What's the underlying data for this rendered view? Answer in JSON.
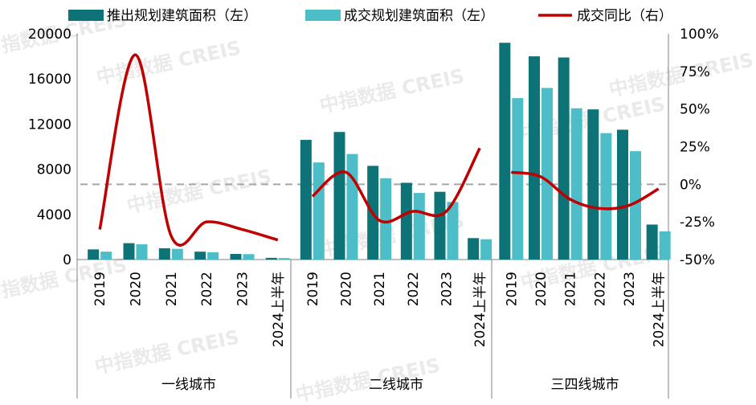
{
  "watermark": "中指数据 CREIS",
  "colors": {
    "launch": "#0d7377",
    "deal": "#4dbec8",
    "ratio": "#c00000",
    "zero_line": "#a6a6a6",
    "axis": "#808080"
  },
  "chart_data": {
    "type": "bar",
    "groups": [
      {
        "name": "一线城市",
        "categories": [
          "2019",
          "2020",
          "2021",
          "2022",
          "2023",
          "2024上半年"
        ]
      },
      {
        "name": "二线城市",
        "categories": [
          "2019",
          "2020",
          "2021",
          "2022",
          "2023",
          "2024上半年"
        ]
      },
      {
        "name": "三四线城市",
        "categories": [
          "2019",
          "2020",
          "2021",
          "2022",
          "2023",
          "2024上半年"
        ]
      }
    ],
    "series": [
      {
        "name": "推出规划建筑面积（左）",
        "kind": "bar",
        "axis": "left",
        "values": [
          900,
          1450,
          1000,
          700,
          500,
          150,
          10600,
          11300,
          8300,
          6800,
          6000,
          1900,
          19200,
          18000,
          17900,
          13300,
          11500,
          3100
        ]
      },
      {
        "name": "成交规划建筑面积（左）",
        "kind": "bar",
        "axis": "left",
        "values": [
          700,
          1350,
          950,
          650,
          480,
          130,
          8600,
          9350,
          7200,
          5900,
          5100,
          1800,
          14300,
          15200,
          13400,
          11200,
          9600,
          2500
        ]
      },
      {
        "name": "成交同比（右）",
        "kind": "line",
        "axis": "right",
        "values": [
          -30,
          86,
          -34,
          -25,
          -30,
          -37,
          -8,
          8,
          -24,
          -18,
          -18,
          24,
          8,
          5,
          -10,
          -16,
          -14,
          -3
        ]
      }
    ],
    "left_axis": {
      "ticks": [
        "0",
        "4000",
        "8000",
        "12000",
        "16000",
        "20000"
      ],
      "range": [
        0,
        20000
      ]
    },
    "right_axis": {
      "ticks": [
        "-50%",
        "-25%",
        "0%",
        "25%",
        "50%",
        "75%",
        "100%"
      ],
      "range": [
        -50,
        100
      ]
    }
  }
}
